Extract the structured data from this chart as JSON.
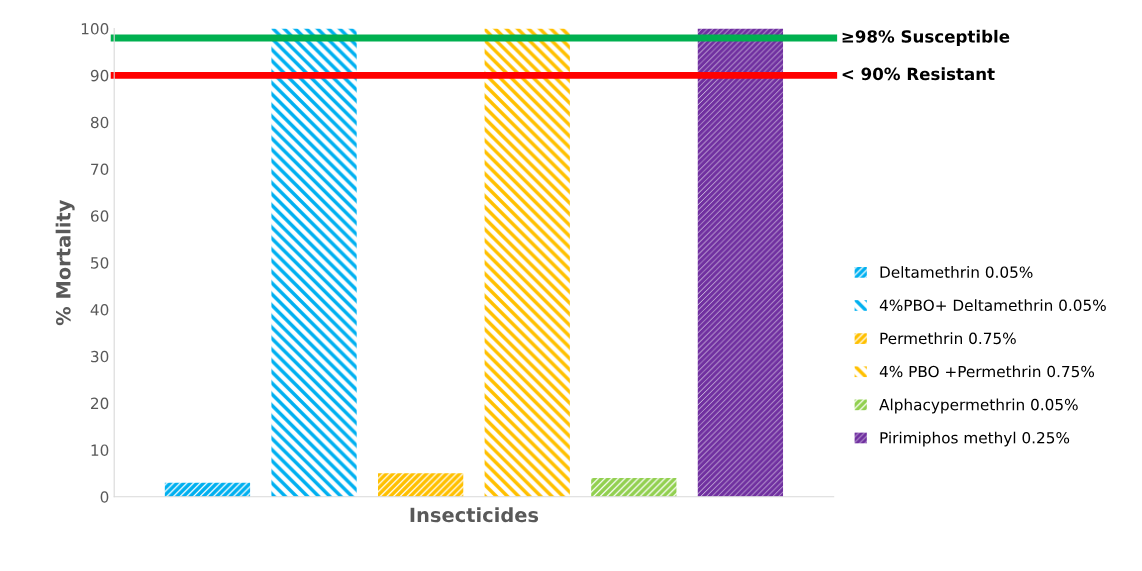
{
  "chart_data": {
    "type": "bar",
    "ylabel": "% Mortality",
    "xlabel": "Insecticides",
    "categories": [
      null
    ],
    "series": [
      {
        "name": "Deltamethrin 0.05%",
        "color": "#00b0f0",
        "values": [
          3
        ]
      },
      {
        "name": "4%PBO+ Deltamethrin 0.05%",
        "color": "#00b0f0",
        "values": [
          100
        ]
      },
      {
        "name": "Permethrin 0.75%",
        "color": "#ffc000",
        "values": [
          5
        ]
      },
      {
        "name": "4% PBO +Permethrin 0.75%",
        "color": "#ffc000",
        "values": [
          100
        ]
      },
      {
        "name": "Alphacypermethrin 0.05%",
        "color": "#92d050",
        "values": [
          4
        ]
      },
      {
        "name": "Pirimiphos methyl 0.25%",
        "color": "#7030a0",
        "values": [
          100
        ]
      }
    ],
    "ylim": [
      0,
      100
    ],
    "yticks": [
      0,
      10,
      20,
      30,
      40,
      50,
      60,
      70,
      80,
      90,
      100
    ],
    "grid": false,
    "legend": "right",
    "ref_lines": [
      {
        "axis": "y",
        "value": 98,
        "label": "≥98% Susceptible",
        "color": "#00b050"
      },
      {
        "axis": "y",
        "value": 90,
        "label": "< 90% Resistant",
        "color": "#ff0000"
      }
    ]
  }
}
